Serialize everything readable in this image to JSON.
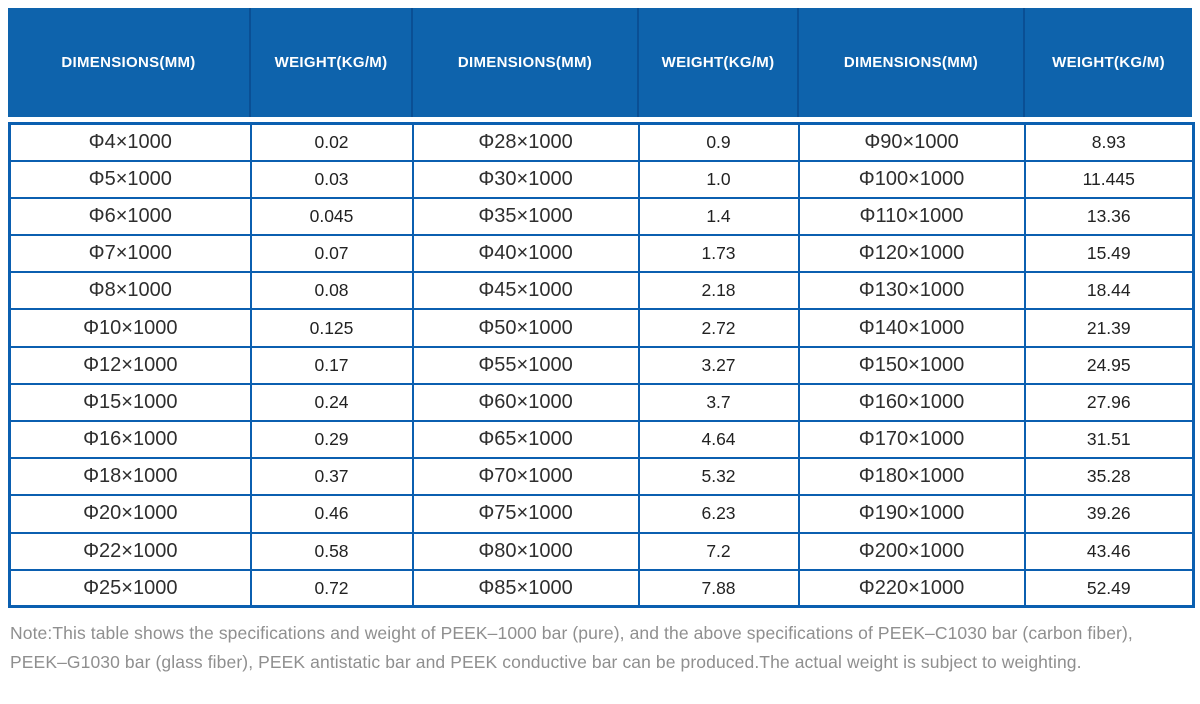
{
  "colors": {
    "header_bg": "#0e63ac",
    "header_separator": "#0a4f94",
    "table_border": "#0b5fb0",
    "cell_text": "#2e2e2e",
    "note_text": "#8f8f8f"
  },
  "table": {
    "columns": [
      {
        "label": "DIMENSIONS(MM)"
      },
      {
        "label": "WEIGHT(KG/M)"
      },
      {
        "label": "DIMENSIONS(MM)"
      },
      {
        "label": "WEIGHT(KG/M)"
      },
      {
        "label": "DIMENSIONS(MM)"
      },
      {
        "label": "WEIGHT(KG/M)"
      }
    ],
    "rows": [
      [
        "Φ4×1000",
        "0.02",
        "Φ28×1000",
        "0.9",
        "Φ90×1000",
        "8.93"
      ],
      [
        "Φ5×1000",
        "0.03",
        "Φ30×1000",
        "1.0",
        "Φ100×1000",
        "11.445"
      ],
      [
        "Φ6×1000",
        "0.045",
        "Φ35×1000",
        "1.4",
        "Φ110×1000",
        "13.36"
      ],
      [
        "Φ7×1000",
        "0.07",
        "Φ40×1000",
        "1.73",
        "Φ120×1000",
        "15.49"
      ],
      [
        "Φ8×1000",
        "0.08",
        "Φ45×1000",
        "2.18",
        "Φ130×1000",
        "18.44"
      ],
      [
        "Φ10×1000",
        "0.125",
        "Φ50×1000",
        "2.72",
        "Φ140×1000",
        "21.39"
      ],
      [
        "Φ12×1000",
        "0.17",
        "Φ55×1000",
        "3.27",
        "Φ150×1000",
        "24.95"
      ],
      [
        "Φ15×1000",
        "0.24",
        "Φ60×1000",
        "3.7",
        "Φ160×1000",
        "27.96"
      ],
      [
        "Φ16×1000",
        "0.29",
        "Φ65×1000",
        "4.64",
        "Φ170×1000",
        "31.51"
      ],
      [
        "Φ18×1000",
        "0.37",
        "Φ70×1000",
        "5.32",
        "Φ180×1000",
        "35.28"
      ],
      [
        "Φ20×1000",
        "0.46",
        "Φ75×1000",
        "6.23",
        "Φ190×1000",
        "39.26"
      ],
      [
        "Φ22×1000",
        "0.58",
        "Φ80×1000",
        "7.2",
        "Φ200×1000",
        "43.46"
      ],
      [
        "Φ25×1000",
        "0.72",
        "Φ85×1000",
        "7.88",
        "Φ220×1000",
        "52.49"
      ]
    ]
  },
  "note_lines": [
    "Note:This table shows the specifications and weight of PEEK–1000 bar (pure), and the above specifications of PEEK–C1030 bar (carbon fiber),",
    "PEEK–G1030 bar (glass fiber), PEEK antistatic bar and PEEK conductive bar can be produced.The actual weight is subject to weighting."
  ]
}
